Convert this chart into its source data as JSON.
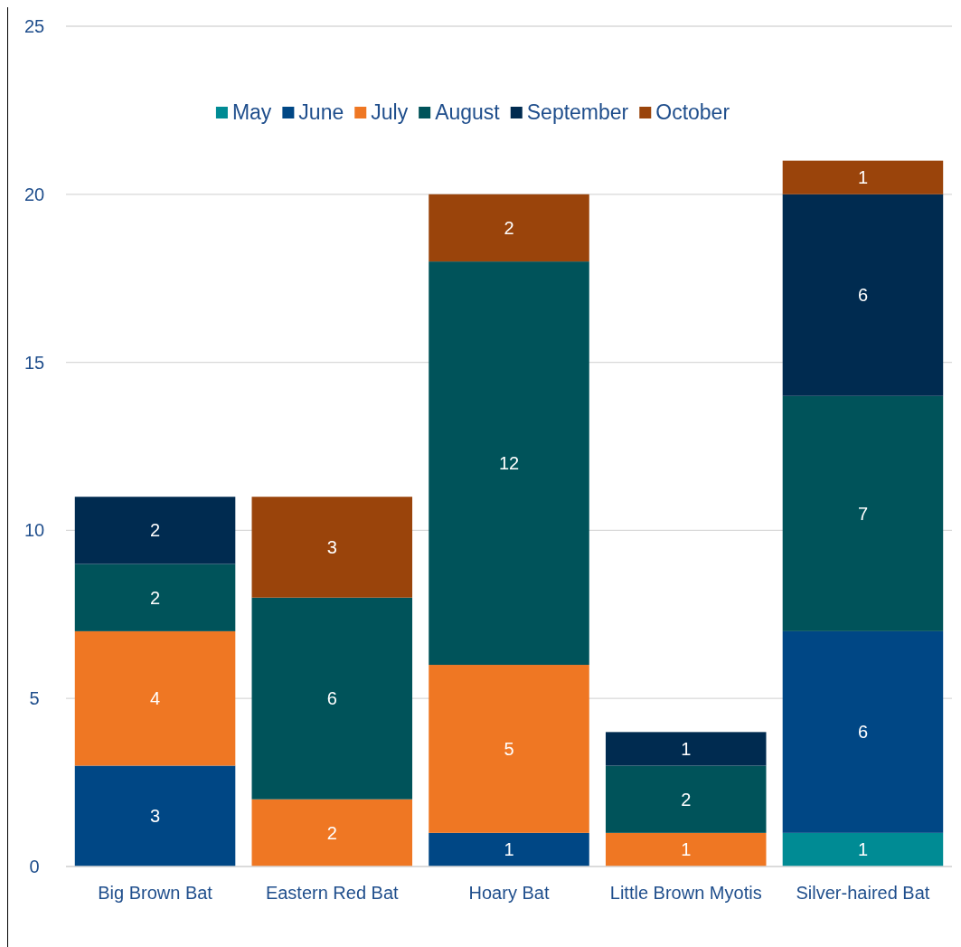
{
  "chart_data": {
    "type": "bar",
    "stacked": true,
    "categories": [
      "Big Brown Bat",
      "Eastern Red Bat",
      "Hoary Bat",
      "Little Brown Myotis",
      "Silver-haired Bat"
    ],
    "series": [
      {
        "name": "May",
        "color": "#008b94",
        "values": [
          null,
          null,
          null,
          null,
          1
        ]
      },
      {
        "name": "June",
        "color": "#004785",
        "values": [
          3,
          null,
          1,
          null,
          6
        ]
      },
      {
        "name": "July",
        "color": "#ef7723",
        "values": [
          4,
          2,
          5,
          1,
          null
        ]
      },
      {
        "name": "August",
        "color": "#00535a",
        "values": [
          2,
          6,
          12,
          2,
          7
        ]
      },
      {
        "name": "September",
        "color": "#002b50",
        "values": [
          2,
          null,
          null,
          1,
          6
        ]
      },
      {
        "name": "October",
        "color": "#9a440b",
        "values": [
          null,
          3,
          2,
          null,
          1
        ]
      }
    ],
    "ylim": [
      0,
      25
    ],
    "yticks": [
      0,
      5,
      10,
      15,
      20,
      25
    ],
    "grid": "y",
    "legend": "top",
    "data_labels": true
  }
}
